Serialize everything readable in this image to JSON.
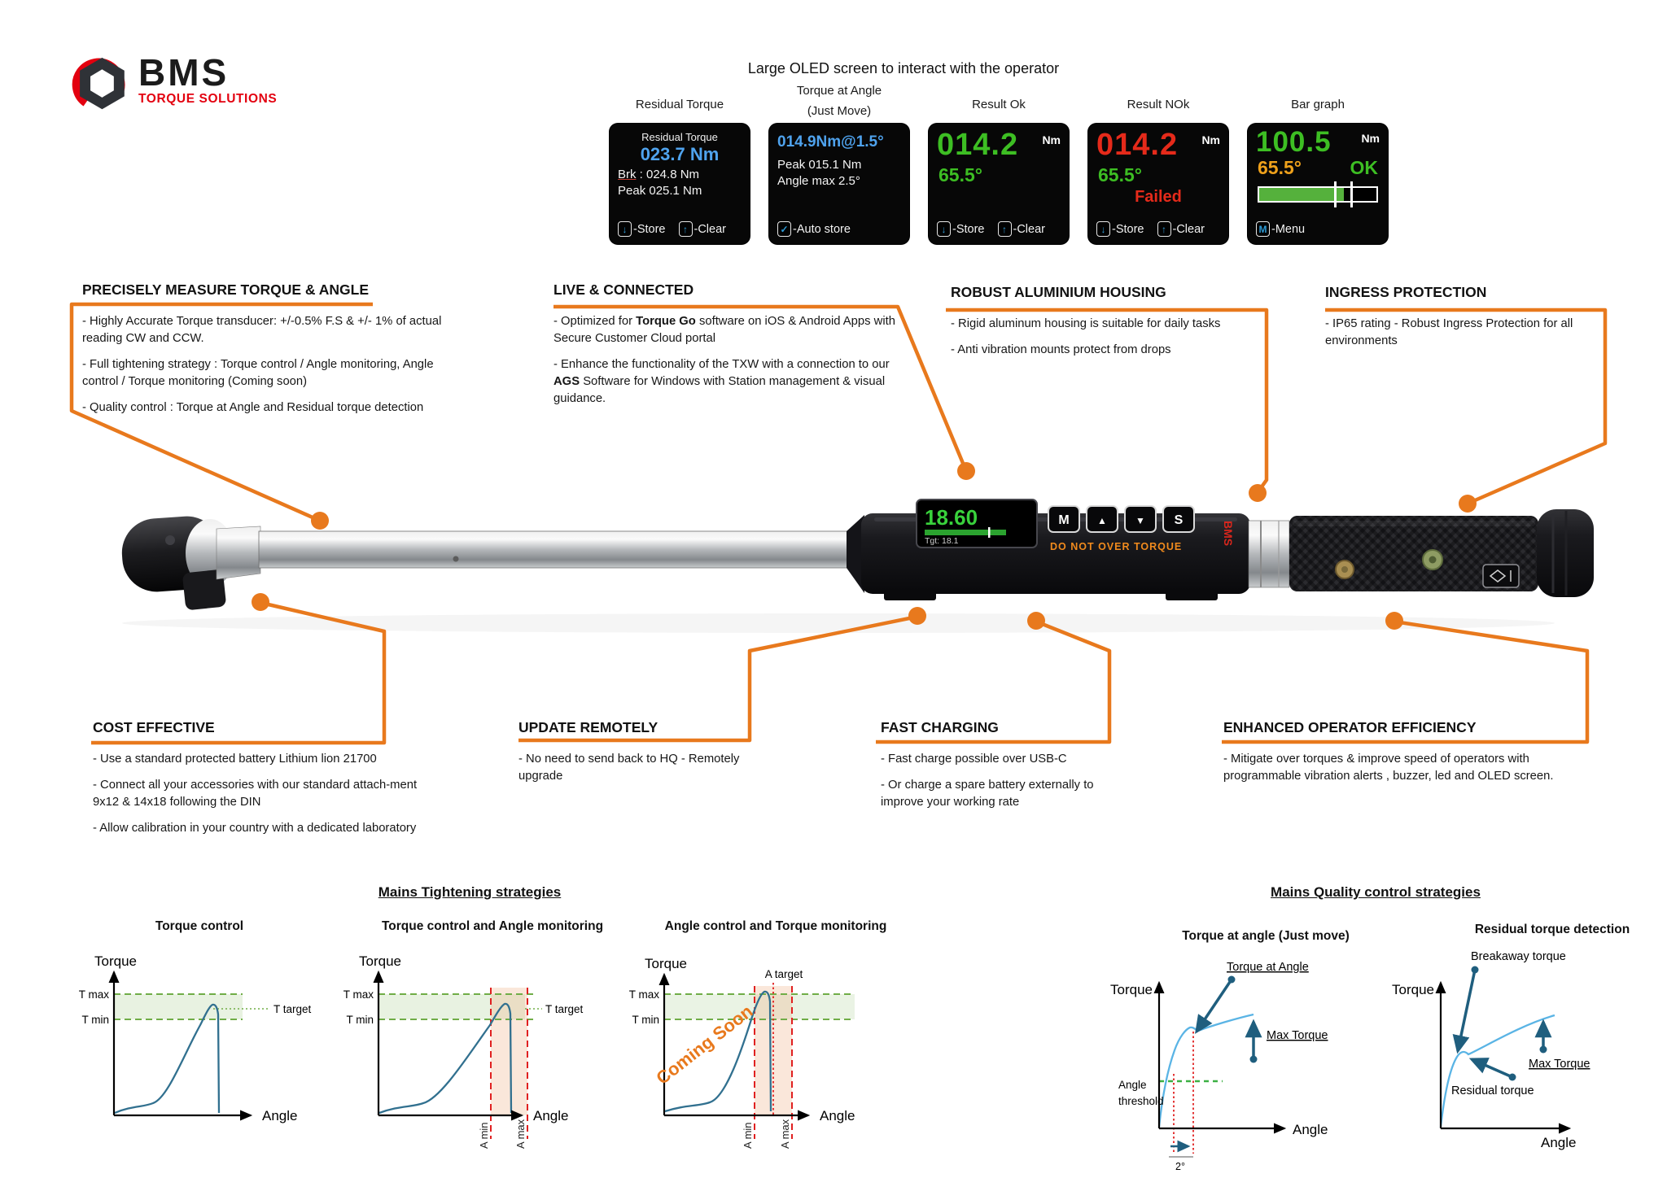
{
  "logo": {
    "brand": "BMS",
    "tagline": "TORQUE SOLUTIONS"
  },
  "oled_section": {
    "heading": "Large OLED screen to interact with the operator",
    "icons": {
      "store": "↓",
      "clear": "↑",
      "check": "✓",
      "menu": "M"
    },
    "screens": [
      {
        "label": "Residual Torque",
        "title": "Residual Torque",
        "main_value": "023.7 Nm",
        "line1_label": "Brk",
        "line1_rest": " : 024.8 Nm",
        "line2": "Peak 025.1 Nm",
        "store_label": "-Store",
        "clear_label": "-Clear"
      },
      {
        "label": "Torque at Angle",
        "label2": "(Just Move)",
        "main_value": "014.9Nm@1.5°",
        "line1": "Peak 015.1 Nm",
        "line2": "Angle max 2.5°",
        "auto_label": "-Auto store"
      },
      {
        "label": "Result Ok",
        "main_value": "014.2",
        "unit": "Nm",
        "angle": "65.5°",
        "store_label": "-Store",
        "clear_label": "-Clear"
      },
      {
        "label": "Result NOk",
        "main_value": "014.2",
        "unit": "Nm",
        "angle": "65.5°",
        "status": "Failed",
        "store_label": "-Store",
        "clear_label": "-Clear"
      },
      {
        "label": "Bar graph",
        "main_value": "100.5",
        "unit": "Nm",
        "angle": "65.5°",
        "status": "OK",
        "bar_percent": 72,
        "menu_label": "-Menu"
      }
    ]
  },
  "features": [
    {
      "title": "PRECISELY MEASURE TORQUE & ANGLE",
      "bullets": [
        "- Highly Accurate Torque transducer: +/-0.5% F.S & +/- 1% of actual reading CW and CCW.",
        "- Full tightening strategy : Torque control / Angle monitoring, Angle control / Torque monitoring (Coming soon)",
        "- Quality control : Torque at Angle and Residual torque detection"
      ]
    },
    {
      "title": "LIVE & CONNECTED",
      "bullet1_pre": "- Optimized for ",
      "bullet1_bold": "Torque Go",
      "bullet1_post": " software on iOS & Android Apps with Secure Customer Cloud portal",
      "bullet2_pre": "- Enhance the functionality of the TXW with a connection to our ",
      "bullet2_bold": "AGS",
      "bullet2_post": " Software for Windows with Station management & visual guidance."
    },
    {
      "title": "ROBUST ALUMINIUM HOUSING",
      "bullets": [
        "- Rigid aluminum housing is suitable for daily tasks",
        "- Anti vibration mounts protect from drops"
      ]
    },
    {
      "title": "INGRESS PROTECTION",
      "bullets": [
        "- IP65 rating - Robust Ingress Protection for all environments"
      ]
    },
    {
      "title": "COST EFFECTIVE",
      "bullets": [
        "- Use a standard protected battery Lithium lion 21700",
        "- Connect all your accessories with our standard attach-ment 9x12 & 14x18 following the DIN",
        "- Allow calibration in your country with a dedicated laboratory"
      ]
    },
    {
      "title": "UPDATE REMOTELY",
      "bullets": [
        "- No need to send back to HQ - Remotely upgrade"
      ]
    },
    {
      "title": "FAST CHARGING",
      "bullets": [
        "- Fast charge possible over USB-C",
        "- Or charge a spare battery externally to improve your working rate"
      ]
    },
    {
      "title": "ENHANCED OPERATOR EFFICIENCY",
      "bullets": [
        "- Mitigate over torques & improve speed of operators with programmable vibration alerts , buzzer, led and OLED screen."
      ]
    }
  ],
  "device": {
    "display_value": "18.60",
    "display_target": "Tgt: 18.1",
    "buttons": [
      "M",
      "▲",
      "▼",
      "S"
    ],
    "warning": "DO NOT OVER TORQUE",
    "brand_mark": "BMS"
  },
  "strategy_sections": {
    "tightening": "Mains Tightening strategies",
    "quality": "Mains Quality control strategies"
  },
  "chart_data": [
    {
      "type": "line",
      "group": "Mains Tightening strategies",
      "title": "Torque control",
      "xlabel": "Angle",
      "ylabel": "Torque",
      "labels": {
        "t_max": "T max",
        "t_min": "T min",
        "t_target": "T target"
      },
      "series": [
        {
          "name": "tightening curve",
          "x_angle_pct": [
            0,
            15,
            28,
            35,
            55,
            68,
            72,
            74,
            75
          ],
          "y_torque_pct": [
            2,
            5,
            7,
            12,
            55,
            88,
            95,
            90,
            0
          ]
        }
      ],
      "grid": false,
      "legend": false,
      "notes": "Blue torque/angle curve peaks at T target inside the green T min-T max tolerance band, then releases."
    },
    {
      "type": "line",
      "group": "Mains Tightening strategies",
      "title": "Torque control and Angle monitoring",
      "xlabel": "Angle",
      "ylabel": "Torque",
      "labels": {
        "t_max": "T max",
        "t_min": "T min",
        "t_target": "T target",
        "a_min": "A min",
        "a_max": "A max"
      },
      "series": [
        {
          "name": "tightening curve",
          "x_angle_pct": [
            0,
            15,
            28,
            35,
            55,
            68,
            72,
            74,
            75
          ],
          "y_torque_pct": [
            2,
            5,
            7,
            12,
            55,
            88,
            95,
            90,
            0
          ]
        }
      ],
      "grid": false,
      "legend": false,
      "notes": "Same curve with a red dashed A min / A max angle window (shaded) around the peak."
    },
    {
      "type": "line",
      "group": "Mains Tightening strategies",
      "title": "Angle control and Torque monitoring",
      "xlabel": "Angle",
      "ylabel": "Torque",
      "labels": {
        "t_max": "T max",
        "t_min": "T min",
        "a_min": "A min",
        "a_max": "A max",
        "a_target": "A target"
      },
      "annotation": "Coming Soon",
      "series": [
        {
          "name": "tightening curve",
          "x_angle_pct": [
            0,
            15,
            28,
            35,
            55,
            68,
            72,
            74,
            75
          ],
          "y_torque_pct": [
            2,
            5,
            7,
            12,
            58,
            92,
            97,
            92,
            0
          ]
        }
      ],
      "grid": false,
      "legend": false,
      "notes": "Angle window with dotted red A target line; peak reaches just above T max."
    },
    {
      "type": "line",
      "group": "Mains Quality control strategies",
      "title": "Torque at angle (Just move)",
      "xlabel": "Angle",
      "ylabel": "Torque",
      "labels": {
        "torque_at_angle": "Torque at Angle",
        "max_torque": "Max Torque",
        "angle_threshold_line1": "Angle",
        "angle_threshold_line2": "threshold",
        "delta": "2°"
      },
      "series": [
        {
          "name": "quality curve",
          "x_angle_pct": [
            0,
            6,
            14,
            25,
            30,
            55,
            80,
            100
          ],
          "y_torque_pct": [
            0,
            30,
            55,
            66,
            64,
            70,
            74,
            76
          ]
        }
      ],
      "grid": false,
      "legend": false,
      "notes": "Torque is read 2° after the angle threshold is crossed; bump marks Torque at Angle, curve ends at Max Torque."
    },
    {
      "type": "line",
      "group": "Mains Quality control strategies",
      "title": "Residual torque detection",
      "xlabel": "Angle",
      "ylabel": "Torque",
      "labels": {
        "breakaway": "Breakaway torque",
        "max_torque": "Max Torque",
        "residual": "Residual torque"
      },
      "series": [
        {
          "name": "quality curve",
          "x_angle_pct": [
            0,
            8,
            18,
            24,
            30,
            60,
            100
          ],
          "y_torque_pct": [
            0,
            25,
            52,
            58,
            55,
            67,
            74
          ]
        }
      ],
      "grid": false,
      "legend": false,
      "notes": "Breakaway torque bump, dip at residual torque, then rise to max torque."
    }
  ]
}
